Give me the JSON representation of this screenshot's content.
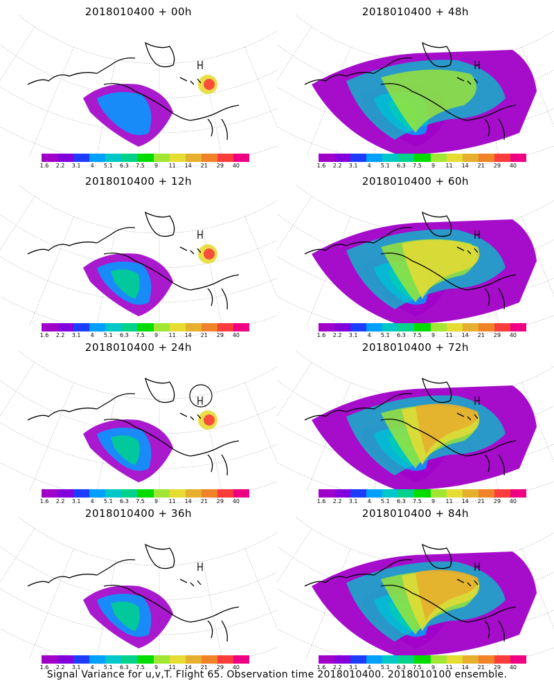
{
  "figure": {
    "caption": "Signal Variance for u,v,T. Flight 65. Observation time 2018010400. 2018010100 ensemble."
  },
  "panels": [
    {
      "id": "p00",
      "title": "2018010400 + 00h",
      "intensity": 0.15
    },
    {
      "id": "p48",
      "title": "2018010400 + 48h",
      "intensity": 0.55
    },
    {
      "id": "p12",
      "title": "2018010400 + 12h",
      "intensity": 0.25
    },
    {
      "id": "p60",
      "title": "2018010400 + 60h",
      "intensity": 0.65
    },
    {
      "id": "p24",
      "title": "2018010400 + 24h",
      "intensity": 0.3
    },
    {
      "id": "p72",
      "title": "2018010400 + 72h",
      "intensity": 0.75
    },
    {
      "id": "p36",
      "title": "2018010400 + 36h",
      "intensity": 0.4
    },
    {
      "id": "p84",
      "title": "2018010400 + 84h",
      "intensity": 0.85
    }
  ],
  "colorbar": {
    "labels": [
      "1.6",
      "2.2",
      "3.1",
      "4",
      "5.1",
      "6.3",
      "7.5",
      "9",
      "11",
      "14",
      "21",
      "29",
      "40"
    ],
    "colors": [
      "#a000c8",
      "#8200dc",
      "#1e3cff",
      "#00a0ff",
      "#00c8c8",
      "#00d28c",
      "#00dc00",
      "#a0e632",
      "#e6dc32",
      "#e6af2d",
      "#f08228",
      "#fa3c3c",
      "#f00082"
    ]
  },
  "icons": {
    "map": "polar-stereographic-map",
    "high-pressure": "letter-H-mark"
  }
}
